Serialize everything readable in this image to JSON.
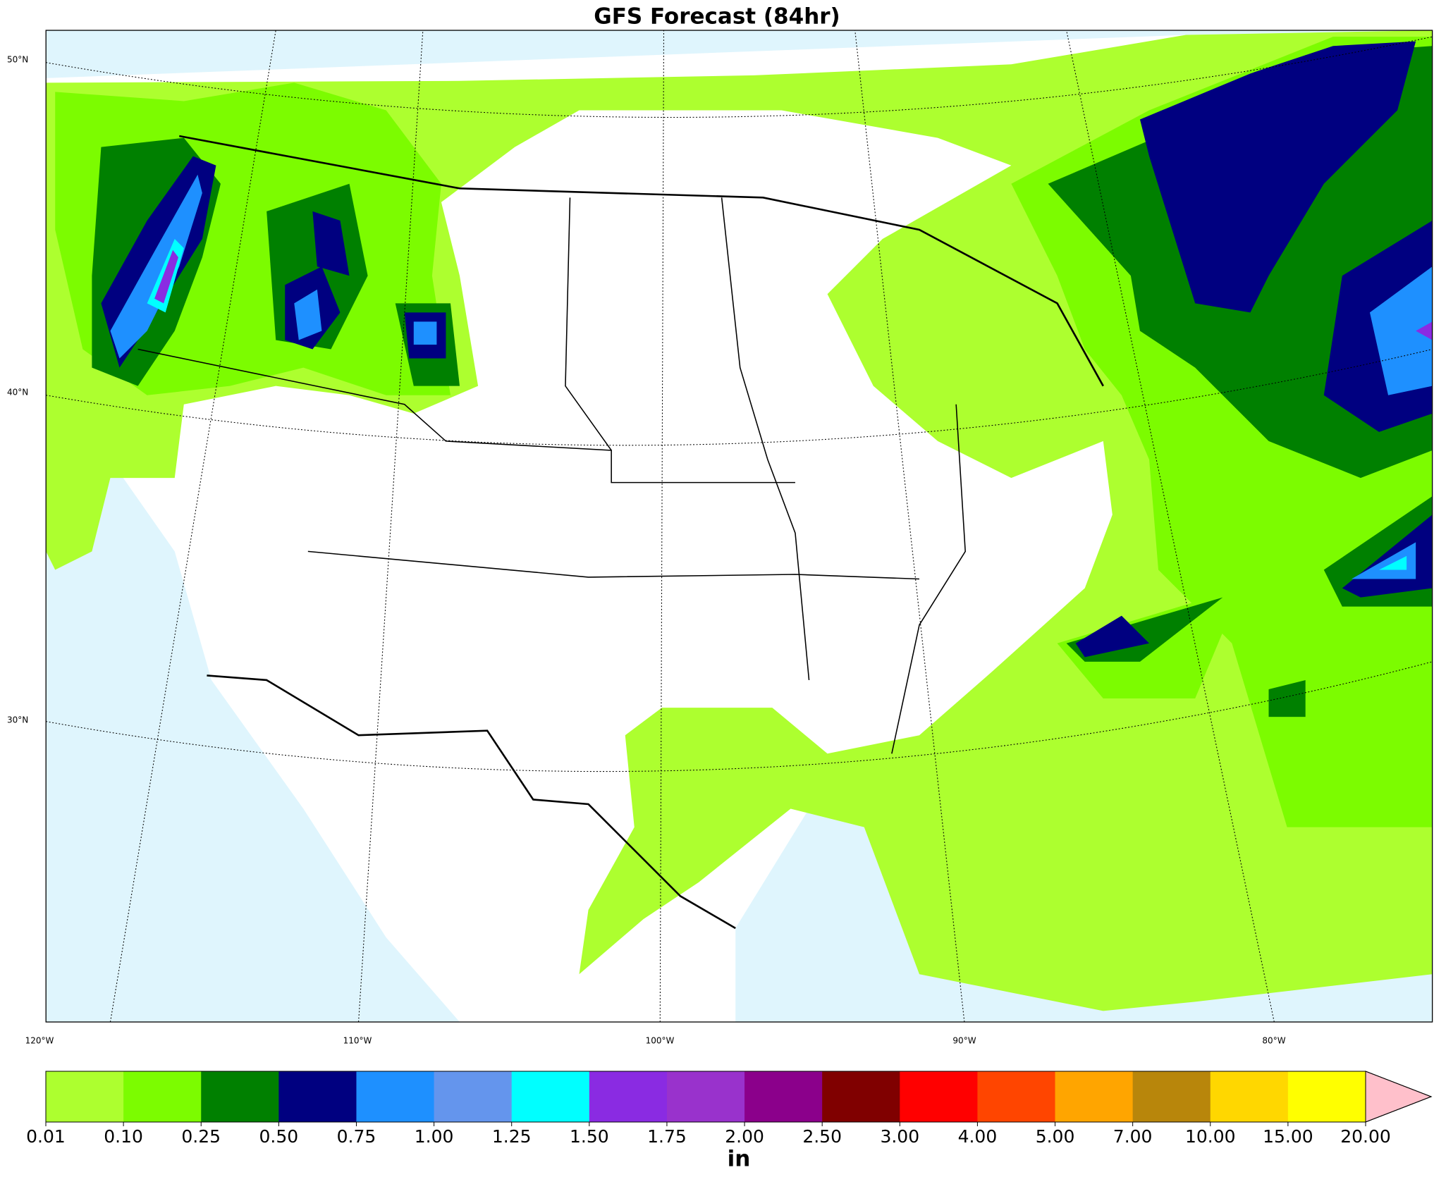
{
  "map": {
    "title": "GFS Forecast (84hr)",
    "lat_labels": [
      "50°N",
      "40°N",
      "30°N"
    ],
    "lon_labels": [
      "120°W",
      "110°W",
      "100°W",
      "90°W",
      "80°W"
    ],
    "colorbar": {
      "label": "in",
      "levels": [
        {
          "value": 0.01,
          "label": "0.01"
        },
        {
          "value": 0.1,
          "label": "0.10"
        },
        {
          "value": 0.25,
          "label": "0.25"
        },
        {
          "value": 0.5,
          "label": "0.50"
        },
        {
          "value": 0.75,
          "label": "0.75"
        },
        {
          "value": 1,
          "label": "1.00"
        },
        {
          "value": 1.25,
          "label": "1.25"
        },
        {
          "value": 1.5,
          "label": "1.50"
        },
        {
          "value": 1.75,
          "label": "1.75"
        },
        {
          "value": 2,
          "label": "2.00"
        },
        {
          "value": 2.5,
          "label": "2.50"
        },
        {
          "value": 3,
          "label": "3.00"
        },
        {
          "value": 4,
          "label": "4.00"
        },
        {
          "value": 5,
          "label": "5.00"
        },
        {
          "value": 7,
          "label": "7.00"
        },
        {
          "value": 10,
          "label": "10.00"
        },
        {
          "value": 15,
          "label": "15.00"
        },
        {
          "value": 20,
          "label": "20.00"
        }
      ],
      "colors": [
        "#adff2f",
        "#7cfc00",
        "#008000",
        "#000080",
        "#1e90ff",
        "#6495ed",
        "#00ffff",
        "#8a2be2",
        "#9932cc",
        "#8b008b",
        "#800000",
        "#ff0000",
        "#ff4500",
        "#ffa500",
        "#b8860b",
        "#ffd700",
        "#ffff00"
      ],
      "extend_color": "#ffc0cb"
    }
  }
}
